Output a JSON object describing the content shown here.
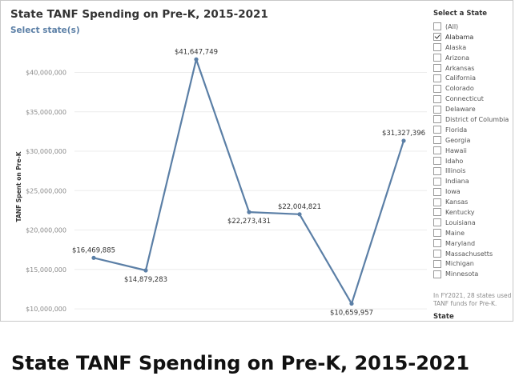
{
  "title": "State TANF Spending on Pre-K, 2015-2021",
  "subtitle": "Select state(s)",
  "chart_data": {
    "type": "line",
    "title": "State TANF Spending on Pre-K, 2015-2021",
    "xlabel": "",
    "ylabel": "TANF Spent on Pre-K",
    "ylim": [
      9500000,
      43500000
    ],
    "yticks": [
      10000000,
      15000000,
      20000000,
      25000000,
      30000000,
      35000000,
      40000000
    ],
    "ytick_labels": [
      "$10,000,000",
      "$15,000,000",
      "$20,000,000",
      "$25,000,000",
      "$30,000,000",
      "$35,000,000",
      "$40,000,000"
    ],
    "grid": true,
    "color": "#5b7fa6",
    "series": [
      {
        "values": [
          16469885,
          14879283,
          41647749,
          22273431,
          22004821,
          10659957,
          31327396
        ],
        "labels": [
          "$16,469,885",
          "$14,879,283",
          "$41,647,749",
          "$22,273,431",
          "$22,004,821",
          "$10,659,957",
          "$31,327,396"
        ]
      }
    ]
  },
  "filter": {
    "title": "Select a State",
    "items": [
      {
        "label": "(All)",
        "checked": false
      },
      {
        "label": "Alabama",
        "checked": true
      },
      {
        "label": "Alaska",
        "checked": false
      },
      {
        "label": "Arizona",
        "checked": false
      },
      {
        "label": "Arkansas",
        "checked": false
      },
      {
        "label": "California",
        "checked": false
      },
      {
        "label": "Colorado",
        "checked": false
      },
      {
        "label": "Connecticut",
        "checked": false
      },
      {
        "label": "Delaware",
        "checked": false
      },
      {
        "label": "District of Columbia",
        "checked": false
      },
      {
        "label": "Florida",
        "checked": false
      },
      {
        "label": "Georgia",
        "checked": false
      },
      {
        "label": "Hawaii",
        "checked": false
      },
      {
        "label": "Idaho",
        "checked": false
      },
      {
        "label": "Illinois",
        "checked": false
      },
      {
        "label": "Indiana",
        "checked": false
      },
      {
        "label": "Iowa",
        "checked": false
      },
      {
        "label": "Kansas",
        "checked": false
      },
      {
        "label": "Kentucky",
        "checked": false
      },
      {
        "label": "Louisiana",
        "checked": false
      },
      {
        "label": "Maine",
        "checked": false
      },
      {
        "label": "Maryland",
        "checked": false
      },
      {
        "label": "Massachusetts",
        "checked": false
      },
      {
        "label": "Michigan",
        "checked": false
      },
      {
        "label": "Minnesota",
        "checked": false
      }
    ]
  },
  "note": "In FY2021, 28 states used TANF funds for Pre-K.",
  "legend_label": "State",
  "caption": "State TANF Spending on Pre-K, 2015-2021"
}
